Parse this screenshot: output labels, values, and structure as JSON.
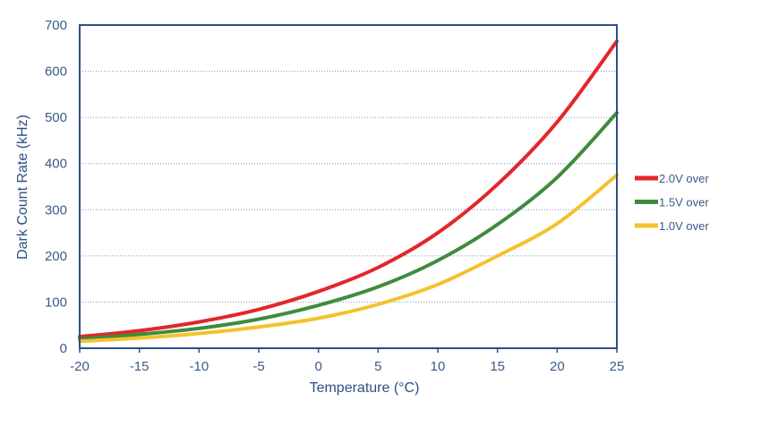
{
  "chart_data": {
    "type": "line",
    "title": "",
    "xlabel": "Temperature (°C)",
    "ylabel": "Dark Count Rate (kHz)",
    "xlim": [
      -20,
      25
    ],
    "ylim": [
      0,
      700
    ],
    "xticks": [
      -20,
      -15,
      -10,
      -5,
      0,
      5,
      10,
      15,
      20,
      25
    ],
    "yticks": [
      0,
      100,
      200,
      300,
      400,
      500,
      600,
      700
    ],
    "grid": "horizontal dotted",
    "legend_position": "right",
    "series": [
      {
        "name": "2.0V over",
        "color": "#e3262b",
        "x": [
          -20,
          -15,
          -10,
          -5,
          0,
          5,
          10,
          15,
          20,
          25
        ],
        "y": [
          25,
          38,
          57,
          84,
          123,
          175,
          250,
          355,
          490,
          665
        ]
      },
      {
        "name": "1.5V over",
        "color": "#3f8c3c",
        "x": [
          -20,
          -15,
          -10,
          -5,
          0,
          5,
          10,
          15,
          20,
          25
        ],
        "y": [
          20,
          30,
          43,
          63,
          93,
          133,
          190,
          268,
          370,
          510
        ]
      },
      {
        "name": "1.0V over",
        "color": "#f4c22d",
        "x": [
          -20,
          -15,
          -10,
          -5,
          0,
          5,
          10,
          15,
          20,
          25
        ],
        "y": [
          15,
          22,
          32,
          46,
          65,
          95,
          138,
          200,
          270,
          375
        ]
      }
    ]
  }
}
